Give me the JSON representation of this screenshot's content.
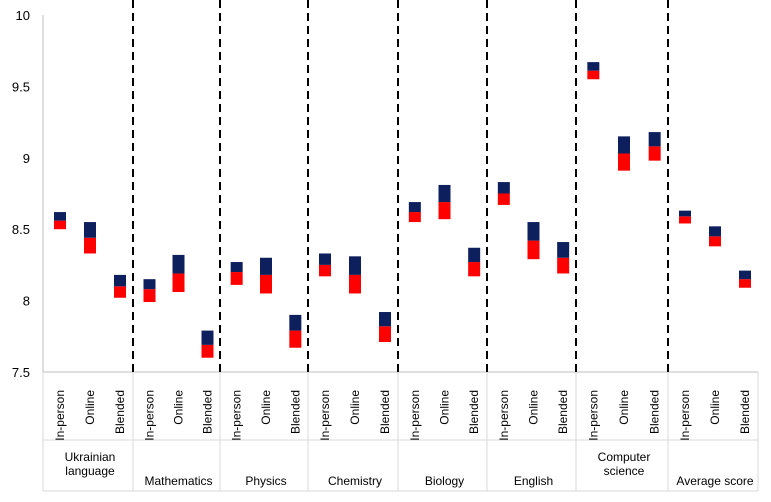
{
  "chart_data": {
    "type": "bar",
    "subtype": "floating-range",
    "ylim": [
      7.5,
      10
    ],
    "yticks": [
      "7.5",
      "8",
      "8.5",
      "9",
      "9.5",
      "10"
    ],
    "colors": {
      "upper": "#0d1f5c",
      "lower": "#ff0000"
    },
    "groups": [
      {
        "label": "Ukrainian language",
        "bars": [
          {
            "label": "In-person",
            "low": 8.5,
            "mid": 8.56,
            "high": 8.62
          },
          {
            "label": "Online",
            "low": 8.33,
            "mid": 8.44,
            "high": 8.55
          },
          {
            "label": "Blended",
            "low": 8.02,
            "mid": 8.1,
            "high": 8.18
          }
        ]
      },
      {
        "label": "Mathematics",
        "bars": [
          {
            "label": "In-person",
            "low": 7.99,
            "mid": 8.08,
            "high": 8.15
          },
          {
            "label": "Online",
            "low": 8.06,
            "mid": 8.19,
            "high": 8.32
          },
          {
            "label": "Blended",
            "low": 7.6,
            "mid": 7.69,
            "high": 7.79
          }
        ]
      },
      {
        "label": "Physics",
        "bars": [
          {
            "label": "In-person",
            "low": 8.11,
            "mid": 8.2,
            "high": 8.27
          },
          {
            "label": "Online",
            "low": 8.05,
            "mid": 8.18,
            "high": 8.3
          },
          {
            "label": "Blended",
            "low": 7.67,
            "mid": 7.79,
            "high": 7.9
          }
        ]
      },
      {
        "label": "Chemistry",
        "bars": [
          {
            "label": "In-person",
            "low": 8.17,
            "mid": 8.25,
            "high": 8.33
          },
          {
            "label": "Online",
            "low": 8.05,
            "mid": 8.18,
            "high": 8.31
          },
          {
            "label": "Blended",
            "low": 7.71,
            "mid": 7.82,
            "high": 7.92
          }
        ]
      },
      {
        "label": "Biology",
        "bars": [
          {
            "label": "In-person",
            "low": 8.55,
            "mid": 8.62,
            "high": 8.69
          },
          {
            "label": "Online",
            "low": 8.57,
            "mid": 8.69,
            "high": 8.81
          },
          {
            "label": "Blended",
            "low": 8.17,
            "mid": 8.27,
            "high": 8.37
          }
        ]
      },
      {
        "label": "English",
        "bars": [
          {
            "label": "In-person",
            "low": 8.67,
            "mid": 8.75,
            "high": 8.83
          },
          {
            "label": "Online",
            "low": 8.29,
            "mid": 8.42,
            "high": 8.55
          },
          {
            "label": "Blended",
            "low": 8.19,
            "mid": 8.3,
            "high": 8.41
          }
        ]
      },
      {
        "label": "Computer science",
        "bars": [
          {
            "label": "In-person",
            "low": 9.55,
            "mid": 9.61,
            "high": 9.67
          },
          {
            "label": "Online",
            "low": 8.91,
            "mid": 9.03,
            "high": 9.15
          },
          {
            "label": "Blended",
            "low": 8.98,
            "mid": 9.08,
            "high": 9.18
          }
        ]
      },
      {
        "label": "Average score",
        "bars": [
          {
            "label": "In-person",
            "low": 8.54,
            "mid": 8.59,
            "high": 8.63
          },
          {
            "label": "Online",
            "low": 8.38,
            "mid": 8.45,
            "high": 8.52
          },
          {
            "label": "Blended",
            "low": 8.09,
            "mid": 8.15,
            "high": 8.21
          }
        ]
      }
    ]
  }
}
